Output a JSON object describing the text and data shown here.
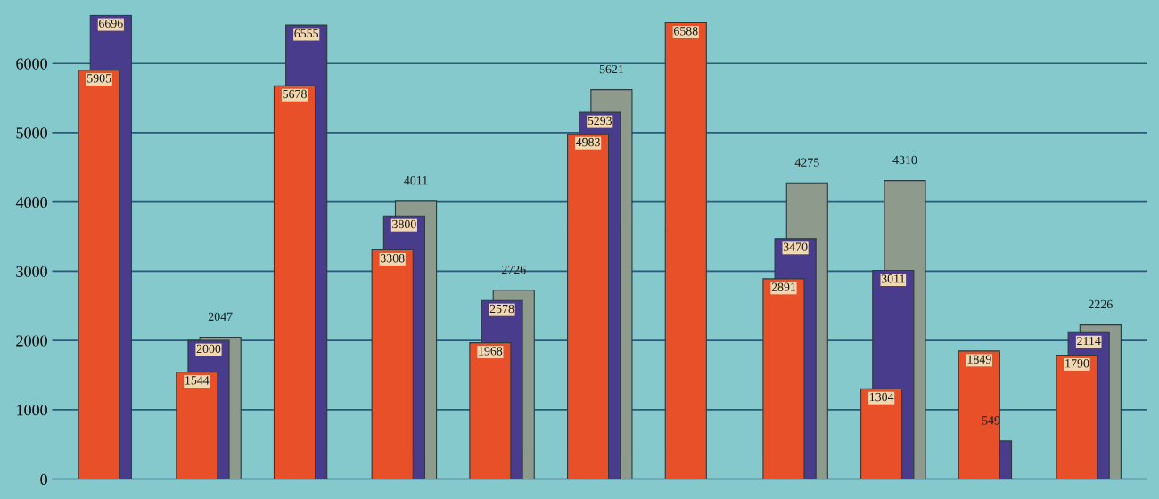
{
  "chart_data": {
    "type": "bar",
    "categories": [
      null,
      null,
      null,
      null,
      null,
      null,
      null,
      null,
      null,
      null,
      null
    ],
    "series": [
      {
        "color": "#e8502a",
        "values": [
          5905,
          1544,
          5678,
          3308,
          1968,
          4983,
          6588,
          2891,
          1304,
          1849,
          1790
        ]
      },
      {
        "color": "#4a3c8c",
        "values": [
          6696,
          2000,
          6555,
          3800,
          2578,
          5293,
          null,
          3470,
          3011,
          549,
          2114
        ]
      },
      {
        "color": "#8e9a8c",
        "values": [
          null,
          2047,
          null,
          4011,
          2726,
          5621,
          null,
          4275,
          4310,
          null,
          2226
        ]
      }
    ],
    "ylim": [
      0,
      6700
    ],
    "yticks": [
      0,
      1000,
      2000,
      3000,
      4000,
      5000,
      6000
    ],
    "grid": "y",
    "data_labels": true,
    "tick_labels": "y"
  }
}
